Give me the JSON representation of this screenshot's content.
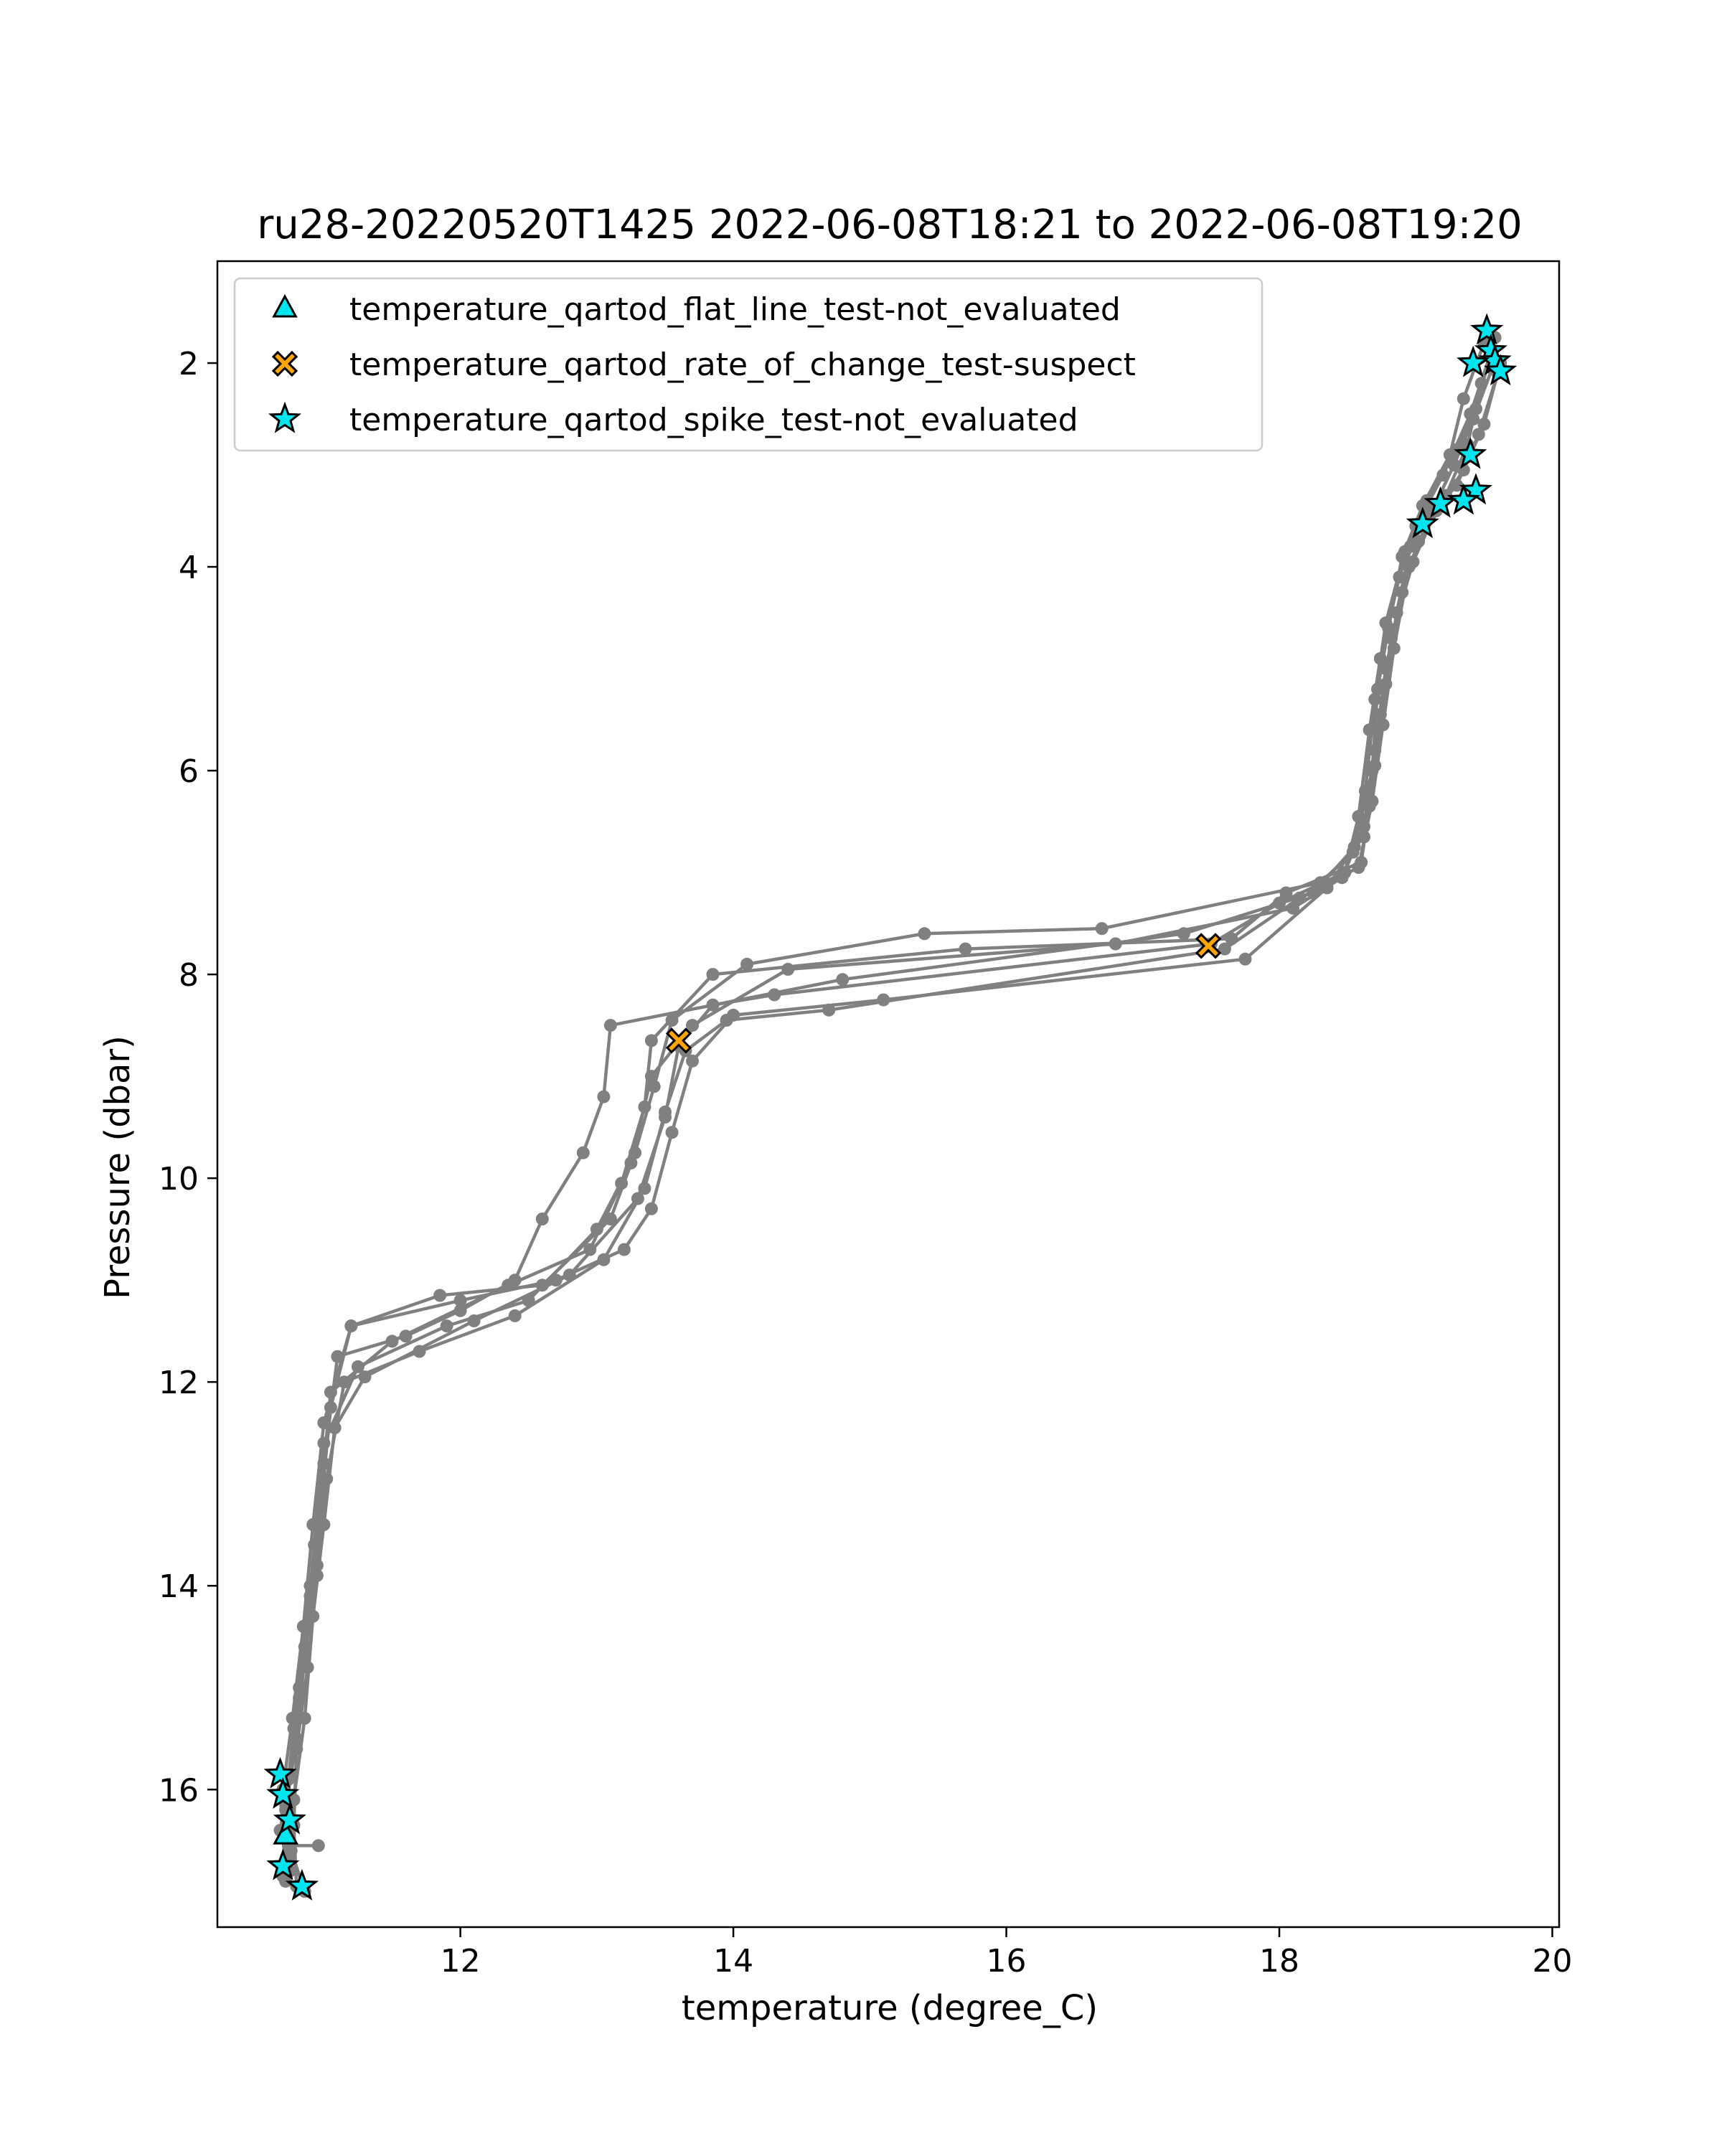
{
  "chart_data": {
    "type": "scatter",
    "title": "ru28-20220520T1425 2022-06-08T18:21 to 2022-06-08T19:20",
    "xlabel": "temperature (degree_C)",
    "ylabel": "Pressure (dbar)",
    "xlim": [
      10.22,
      20.05
    ],
    "ylim": [
      17.35,
      1.0
    ],
    "y_inverted": true,
    "grid": false,
    "legend_position": "top-left",
    "xticks": [
      12,
      14,
      16,
      18,
      20
    ],
    "yticks": [
      2,
      4,
      6,
      8,
      10,
      12,
      14,
      16
    ],
    "profile_color": "#808080",
    "profiles": [
      {
        "points": [
          [
            19.58,
            1.75
          ],
          [
            19.44,
            2.45
          ],
          [
            19.3,
            2.85
          ],
          [
            19.08,
            3.35
          ],
          [
            18.92,
            3.85
          ],
          [
            18.78,
            4.55
          ],
          [
            18.7,
            5.3
          ],
          [
            18.63,
            6.2
          ],
          [
            18.54,
            6.8
          ],
          [
            18.3,
            7.1
          ],
          [
            16.7,
            7.55
          ],
          [
            15.4,
            7.6
          ],
          [
            14.1,
            7.9
          ],
          [
            13.55,
            8.45
          ],
          [
            13.42,
            9.1
          ],
          [
            13.28,
            9.75
          ],
          [
            13.1,
            10.4
          ],
          [
            12.6,
            11.05
          ],
          [
            11.85,
            11.15
          ],
          [
            11.2,
            11.45
          ],
          [
            11.0,
            12.4
          ],
          [
            10.92,
            13.4
          ],
          [
            10.85,
            14.4
          ],
          [
            10.77,
            15.3
          ],
          [
            10.7,
            16.0
          ],
          [
            10.72,
            16.9
          ]
        ]
      },
      {
        "points": [
          [
            19.62,
            2.0
          ],
          [
            19.5,
            2.6
          ],
          [
            19.35,
            3.05
          ],
          [
            19.15,
            3.45
          ],
          [
            18.98,
            3.95
          ],
          [
            18.82,
            4.7
          ],
          [
            18.74,
            5.45
          ],
          [
            18.66,
            6.35
          ],
          [
            18.6,
            6.9
          ],
          [
            18.05,
            7.2
          ],
          [
            17.65,
            7.65
          ],
          [
            15.7,
            7.75
          ],
          [
            13.85,
            8.0
          ],
          [
            13.4,
            8.65
          ],
          [
            13.35,
            9.3
          ],
          [
            13.18,
            10.05
          ],
          [
            12.95,
            10.7
          ],
          [
            12.35,
            11.05
          ],
          [
            11.5,
            11.6
          ],
          [
            11.05,
            12.1
          ],
          [
            10.98,
            13.1
          ],
          [
            10.9,
            14.0
          ],
          [
            10.82,
            15.0
          ],
          [
            10.75,
            15.85
          ],
          [
            10.68,
            16.4
          ],
          [
            10.75,
            16.8
          ]
        ]
      },
      {
        "points": [
          [
            19.55,
            1.9
          ],
          [
            19.4,
            2.5
          ],
          [
            19.2,
            3.1
          ],
          [
            19.0,
            3.6
          ],
          [
            18.88,
            4.1
          ],
          [
            18.74,
            4.9
          ],
          [
            18.66,
            5.6
          ],
          [
            18.58,
            6.45
          ],
          [
            18.48,
            7.0
          ],
          [
            18.0,
            7.3
          ],
          [
            17.5,
            7.7
          ],
          [
            14.3,
            8.2
          ],
          [
            13.85,
            8.3
          ],
          [
            13.6,
            8.7
          ],
          [
            13.5,
            9.4
          ],
          [
            13.3,
            10.2
          ],
          [
            12.8,
            10.95
          ],
          [
            12.1,
            11.4
          ],
          [
            11.3,
            11.95
          ],
          [
            11.08,
            12.45
          ],
          [
            11.0,
            13.4
          ],
          [
            10.92,
            14.3
          ],
          [
            10.86,
            15.3
          ],
          [
            10.78,
            16.1
          ],
          [
            10.76,
            16.6
          ],
          [
            10.86,
            17.0
          ]
        ]
      },
      {
        "points": [
          [
            19.5,
            1.8
          ],
          [
            19.35,
            2.35
          ],
          [
            19.25,
            2.9
          ],
          [
            19.05,
            3.4
          ],
          [
            18.9,
            3.9
          ],
          [
            18.8,
            4.6
          ],
          [
            18.72,
            5.2
          ],
          [
            18.68,
            6.0
          ],
          [
            18.55,
            6.75
          ],
          [
            18.35,
            7.15
          ],
          [
            17.75,
            7.85
          ],
          [
            15.1,
            8.25
          ],
          [
            14.0,
            8.4
          ],
          [
            13.7,
            8.85
          ],
          [
            13.55,
            9.55
          ],
          [
            13.4,
            10.3
          ],
          [
            13.2,
            10.7
          ],
          [
            12.7,
            11.0
          ],
          [
            12.0,
            11.2
          ],
          [
            11.2,
            11.45
          ],
          [
            11.05,
            12.25
          ],
          [
            10.98,
            13.2
          ],
          [
            10.9,
            14.1
          ],
          [
            10.82,
            15.1
          ],
          [
            10.74,
            15.9
          ],
          [
            10.73,
            16.7
          ]
        ]
      },
      {
        "points": [
          [
            19.6,
            2.1
          ],
          [
            19.46,
            2.7
          ],
          [
            19.3,
            3.2
          ],
          [
            19.1,
            3.5
          ],
          [
            18.95,
            4.0
          ],
          [
            18.84,
            4.8
          ],
          [
            18.76,
            5.55
          ],
          [
            18.68,
            6.3
          ],
          [
            18.58,
            6.95
          ],
          [
            18.15,
            7.25
          ],
          [
            17.6,
            7.75
          ],
          [
            14.7,
            8.35
          ],
          [
            13.95,
            8.45
          ],
          [
            13.65,
            8.75
          ],
          [
            13.5,
            9.35
          ],
          [
            13.35,
            10.1
          ],
          [
            13.05,
            10.8
          ],
          [
            12.4,
            11.35
          ],
          [
            11.7,
            11.7
          ],
          [
            11.15,
            12.0
          ],
          [
            11.02,
            12.95
          ],
          [
            10.95,
            13.8
          ],
          [
            10.86,
            14.7
          ],
          [
            10.8,
            15.5
          ],
          [
            10.72,
            16.2
          ],
          [
            10.7,
            16.85
          ]
        ]
      },
      {
        "points": [
          [
            19.48,
            2.2
          ],
          [
            19.38,
            2.8
          ],
          [
            19.22,
            3.3
          ],
          [
            19.02,
            3.75
          ],
          [
            18.9,
            4.25
          ],
          [
            18.78,
            5.0
          ],
          [
            18.7,
            5.8
          ],
          [
            18.62,
            6.55
          ],
          [
            18.46,
            7.05
          ],
          [
            18.1,
            7.35
          ],
          [
            16.8,
            7.7
          ],
          [
            14.4,
            7.95
          ],
          [
            13.7,
            8.5
          ],
          [
            13.4,
            9.0
          ],
          [
            13.25,
            9.85
          ],
          [
            13.0,
            10.5
          ],
          [
            12.5,
            11.2
          ],
          [
            11.9,
            11.45
          ],
          [
            11.25,
            11.85
          ],
          [
            11.0,
            12.6
          ],
          [
            10.93,
            13.6
          ],
          [
            10.86,
            14.6
          ],
          [
            10.78,
            15.4
          ],
          [
            10.72,
            16.15
          ],
          [
            10.74,
            16.55
          ],
          [
            10.96,
            16.55
          ]
        ]
      },
      {
        "points": [
          [
            19.56,
            2.05
          ],
          [
            19.42,
            2.55
          ],
          [
            19.28,
            3.0
          ],
          [
            19.12,
            3.45
          ],
          [
            18.96,
            3.8
          ],
          [
            18.86,
            4.45
          ],
          [
            18.78,
            5.15
          ],
          [
            18.7,
            5.95
          ],
          [
            18.62,
            6.65
          ],
          [
            18.25,
            7.2
          ],
          [
            17.3,
            7.6
          ],
          [
            14.8,
            8.05
          ],
          [
            13.1,
            8.5
          ],
          [
            13.05,
            9.2
          ],
          [
            12.9,
            9.75
          ],
          [
            12.6,
            10.4
          ],
          [
            12.4,
            11.0
          ],
          [
            12.0,
            11.3
          ],
          [
            11.6,
            11.55
          ],
          [
            11.1,
            11.75
          ],
          [
            11.0,
            12.8
          ],
          [
            10.95,
            13.9
          ],
          [
            10.88,
            14.8
          ],
          [
            10.8,
            15.6
          ],
          [
            10.78,
            16.35
          ],
          [
            10.8,
            16.95
          ]
        ]
      }
    ],
    "series": [
      {
        "name": "temperature_qartod_flat_line_test-not_evaluated",
        "marker": "triangle",
        "color": "#00e5ee",
        "points": [
          [
            10.72,
            16.45
          ]
        ]
      },
      {
        "name": "temperature_qartod_rate_of_change_test-suspect",
        "marker": "x",
        "color": "#ffa500",
        "points": [
          [
            13.6,
            8.65
          ],
          [
            17.48,
            7.72
          ]
        ]
      },
      {
        "name": "temperature_qartod_spike_test-not_evaluated",
        "marker": "star",
        "color": "#00e5ee",
        "points": [
          [
            19.52,
            1.68
          ],
          [
            19.55,
            1.88
          ],
          [
            19.58,
            1.98
          ],
          [
            19.42,
            2.0
          ],
          [
            19.62,
            2.08
          ],
          [
            19.4,
            2.9
          ],
          [
            19.44,
            3.25
          ],
          [
            19.35,
            3.35
          ],
          [
            19.18,
            3.38
          ],
          [
            19.05,
            3.58
          ],
          [
            10.68,
            15.85
          ],
          [
            10.7,
            16.05
          ],
          [
            10.75,
            16.3
          ],
          [
            10.7,
            16.75
          ],
          [
            10.84,
            16.95
          ]
        ]
      }
    ]
  }
}
